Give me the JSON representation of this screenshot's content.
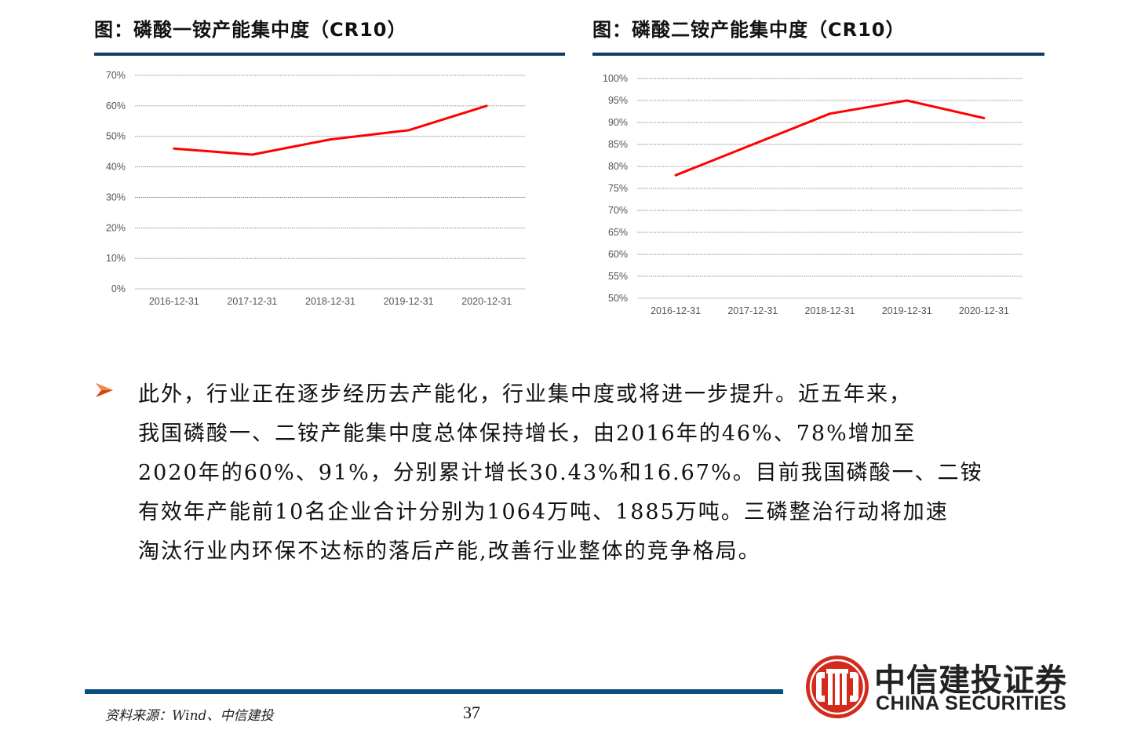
{
  "figures": [
    {
      "title": "图：磷酸一铵产能集中度（CR10）"
    },
    {
      "title": "图：磷酸二铵产能集中度（CR10）"
    }
  ],
  "chart_data": [
    {
      "type": "line",
      "title": "图：磷酸一铵产能集中度（CR10）",
      "categories": [
        "2016-12-31",
        "2017-12-31",
        "2018-12-31",
        "2019-12-31",
        "2020-12-31"
      ],
      "series": [
        {
          "name": "磷酸一铵CR10",
          "color": "#ff0000",
          "values": [
            46,
            44,
            49,
            52,
            60
          ]
        }
      ],
      "yticks": [
        "0%",
        "10%",
        "20%",
        "30%",
        "40%",
        "50%",
        "60%",
        "70%"
      ],
      "ylim": [
        0,
        70
      ],
      "ystep": 10,
      "xlabel": "",
      "ylabel": "",
      "grid": "horizontal dotted",
      "legend": "none"
    },
    {
      "type": "line",
      "title": "图：磷酸二铵产能集中度（CR10）",
      "categories": [
        "2016-12-31",
        "2017-12-31",
        "2018-12-31",
        "2019-12-31",
        "2020-12-31"
      ],
      "series": [
        {
          "name": "磷酸二铵CR10",
          "color": "#ff0000",
          "values": [
            78,
            85,
            92,
            95,
            91
          ]
        }
      ],
      "yticks": [
        "50%",
        "55%",
        "60%",
        "65%",
        "70%",
        "75%",
        "80%",
        "85%",
        "90%",
        "95%",
        "100%"
      ],
      "ylim": [
        50,
        100
      ],
      "ystep": 5,
      "xlabel": "",
      "ylabel": "",
      "grid": "horizontal dotted",
      "legend": "none"
    }
  ],
  "body": {
    "lines": [
      "此外，行业正在逐步经历去产能化，行业集中度或将进一步提升。近五年来，",
      "我国磷酸一、二铵产能集中度总体保持增长，由2016年的46%、78%增加至",
      "2020年的60%、91%，分别累计增长30.43%和16.67%。目前我国磷酸一、二铵",
      "有效年产能前10名企业合计分别为1064万吨、1885万吨。三磷整治行动将加速",
      "淘汰行业内环保不达标的落后产能,改善行业整体的竞争格局。"
    ]
  },
  "footer": {
    "source": "资料来源：Wind、中信建投",
    "page_number": "37"
  },
  "logo": {
    "name_cn": "中信建投证券",
    "name_en": "CHINA SECURITIES"
  },
  "colors": {
    "rule": "#0b3c6b",
    "footer_rule": "#07507f",
    "line": "#ff0000",
    "bullet": "#d9430f",
    "logo_red": "#d42a1c"
  }
}
